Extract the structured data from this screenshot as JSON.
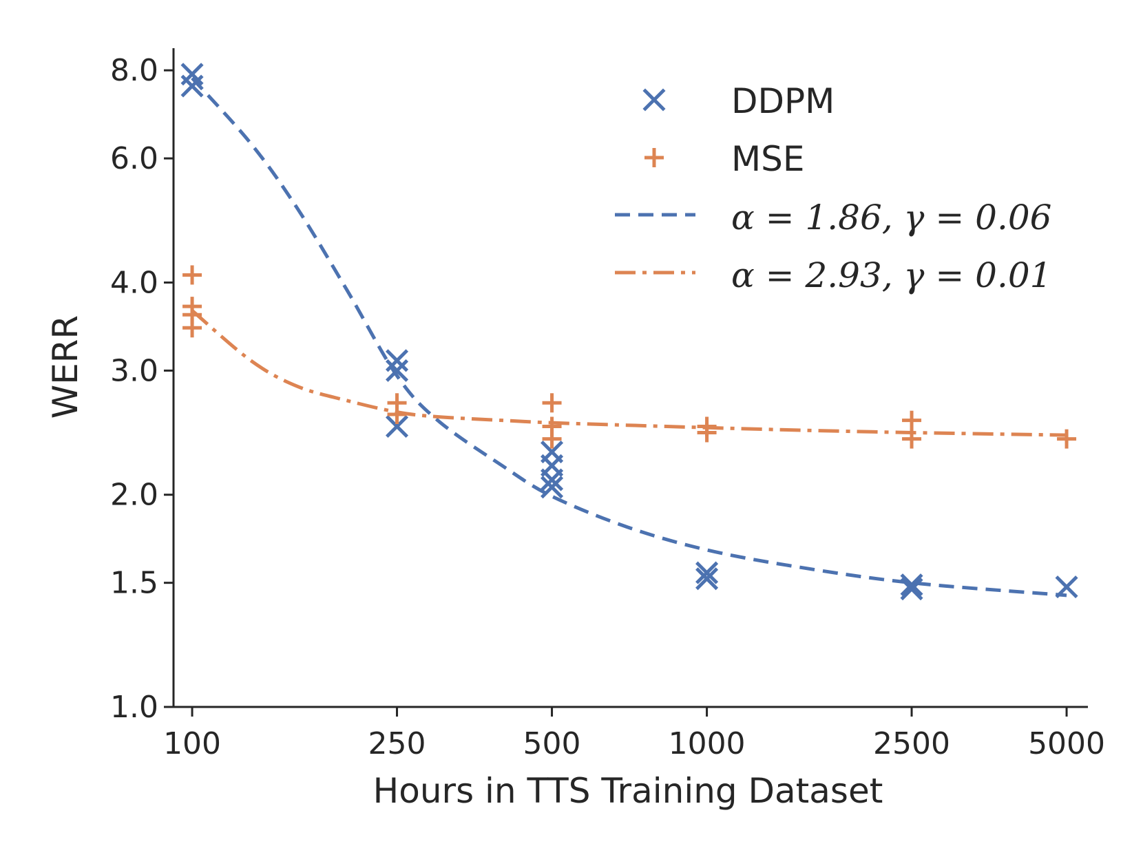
{
  "chart_data": {
    "type": "scatter",
    "title": "",
    "xlabel": "Hours in TTS Training Dataset",
    "ylabel": "WERR",
    "xscale": "log",
    "yscale": "log",
    "xlim": [
      92,
      5500
    ],
    "ylim": [
      1.0,
      8.6
    ],
    "x_ticks": [
      100,
      250,
      500,
      1000,
      2500,
      5000
    ],
    "x_tick_labels": [
      "100",
      "250",
      "500",
      "1000",
      "2500",
      "5000"
    ],
    "y_ticks": [
      1.0,
      1.5,
      2.0,
      3.0,
      4.0,
      6.0,
      8.0
    ],
    "y_tick_labels": [
      "1.0",
      "1.5",
      "2.0",
      "3.0",
      "4.0",
      "6.0",
      "8.0"
    ],
    "legend_position": "top-right",
    "series": [
      {
        "name": "DDPM",
        "kind": "scatter",
        "marker": "x",
        "color": "#4c72b0",
        "points": [
          [
            100,
            7.9
          ],
          [
            100,
            7.6
          ],
          [
            250,
            3.1
          ],
          [
            250,
            3.0
          ],
          [
            250,
            2.5
          ],
          [
            500,
            2.3
          ],
          [
            500,
            2.2
          ],
          [
            500,
            2.1
          ],
          [
            500,
            2.05
          ],
          [
            1000,
            1.55
          ],
          [
            1000,
            1.52
          ],
          [
            2500,
            1.49
          ],
          [
            2500,
            1.47
          ],
          [
            5000,
            1.48
          ]
        ]
      },
      {
        "name": "MSE",
        "kind": "scatter",
        "marker": "+",
        "color": "#dd8452",
        "points": [
          [
            100,
            4.1
          ],
          [
            100,
            3.7
          ],
          [
            100,
            3.6
          ],
          [
            100,
            3.45
          ],
          [
            250,
            2.7
          ],
          [
            250,
            2.6
          ],
          [
            500,
            2.7
          ],
          [
            500,
            2.5
          ],
          [
            500,
            2.4
          ],
          [
            1000,
            2.5
          ],
          [
            1000,
            2.45
          ],
          [
            2500,
            2.55
          ],
          [
            2500,
            2.4
          ],
          [
            5000,
            2.4
          ]
        ]
      }
    ],
    "fits": [
      {
        "label": "α = 1.86, γ = 0.06",
        "style": "dashed",
        "color": "#4c72b0",
        "x": [
          100,
          130,
          160,
          200,
          250,
          300,
          400,
          500,
          700,
          1000,
          1500,
          2500,
          5000
        ],
        "y": [
          7.8,
          6.3,
          5.1,
          3.9,
          2.95,
          2.55,
          2.2,
          1.99,
          1.8,
          1.67,
          1.58,
          1.5,
          1.44
        ]
      },
      {
        "label": "α = 2.93, γ = 0.01",
        "style": "dashdot",
        "color": "#dd8452",
        "x": [
          100,
          130,
          160,
          200,
          250,
          300,
          400,
          500,
          700,
          1000,
          1500,
          2500,
          5000
        ],
        "y": [
          3.65,
          3.1,
          2.85,
          2.72,
          2.62,
          2.58,
          2.55,
          2.53,
          2.51,
          2.49,
          2.47,
          2.45,
          2.43
        ]
      }
    ]
  }
}
